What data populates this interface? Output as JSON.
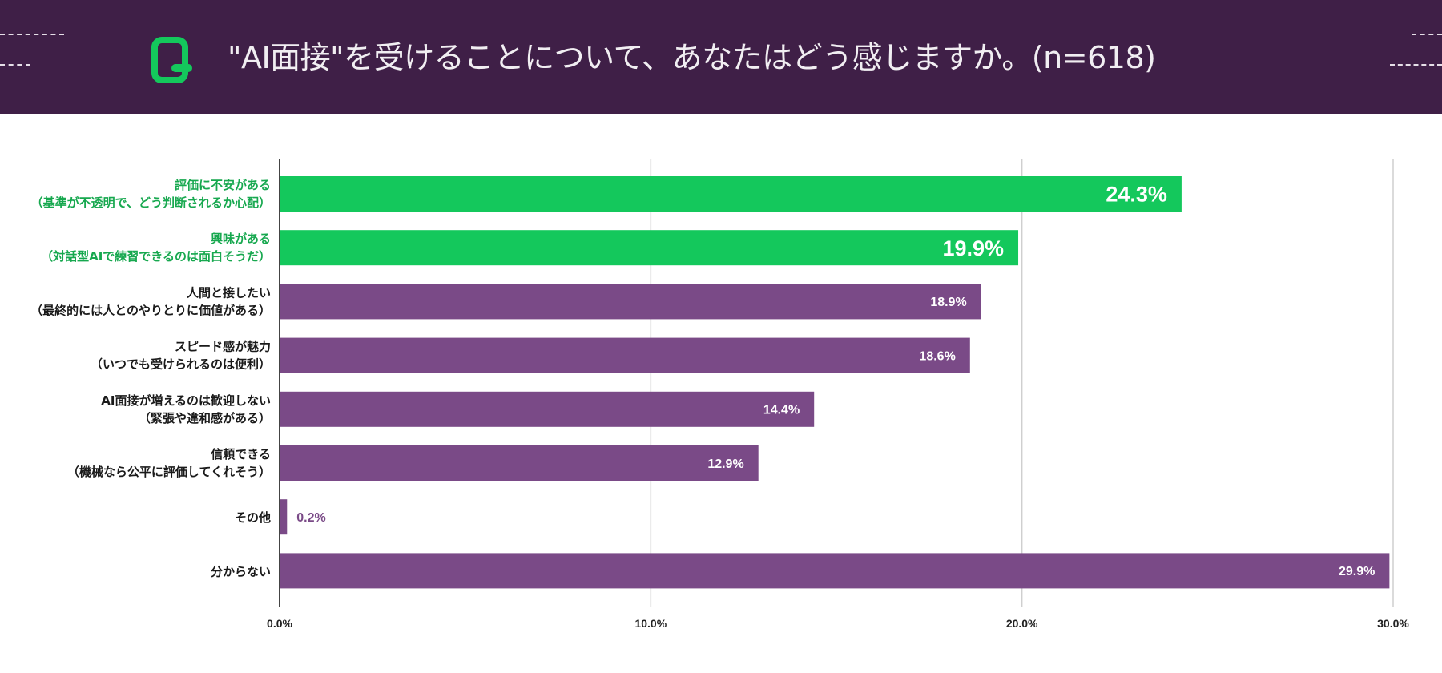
{
  "header": {
    "title": "\"AI面接\"を受けることについて、あなたはどう感じますか。(n=618)",
    "logo_icon": "q-logo-icon"
  },
  "colors": {
    "header_bg": "#3f1f47",
    "highlight": "#14c85c",
    "bar": "#7a4a87",
    "highlight_label": "#17a84f"
  },
  "chart_data": {
    "type": "bar",
    "orientation": "horizontal",
    "categories": [
      [
        "評価に不安がある",
        "（基準が不透明で、どう判断されるか心配）"
      ],
      [
        "興味がある",
        "（対話型AIで練習できるのは面白そうだ）"
      ],
      [
        "人間と接したい",
        "（最終的には人とのやりとりに価値がある）"
      ],
      [
        "スピード感が魅力",
        "（いつでも受けられるのは便利）"
      ],
      [
        "AI面接が増えるのは歓迎しない",
        "（緊張や違和感がある）"
      ],
      [
        "信頼できる",
        "（機械なら公平に評価してくれそう）"
      ],
      [
        "その他"
      ],
      [
        "分からない"
      ]
    ],
    "values": [
      24.3,
      19.9,
      18.9,
      18.6,
      14.4,
      12.9,
      0.2,
      29.9
    ],
    "data_labels": [
      "24.3%",
      "19.9%",
      "18.9%",
      "18.6%",
      "14.4%",
      "12.9%",
      "0.2%",
      "29.9%"
    ],
    "highlighted": [
      true,
      true,
      false,
      false,
      false,
      false,
      false,
      false
    ],
    "xlim": [
      0,
      30
    ],
    "xticks": [
      0,
      10,
      20,
      30
    ],
    "xtick_labels": [
      "0.0%",
      "10.0%",
      "20.0%",
      "30.0%"
    ],
    "grid": true
  }
}
